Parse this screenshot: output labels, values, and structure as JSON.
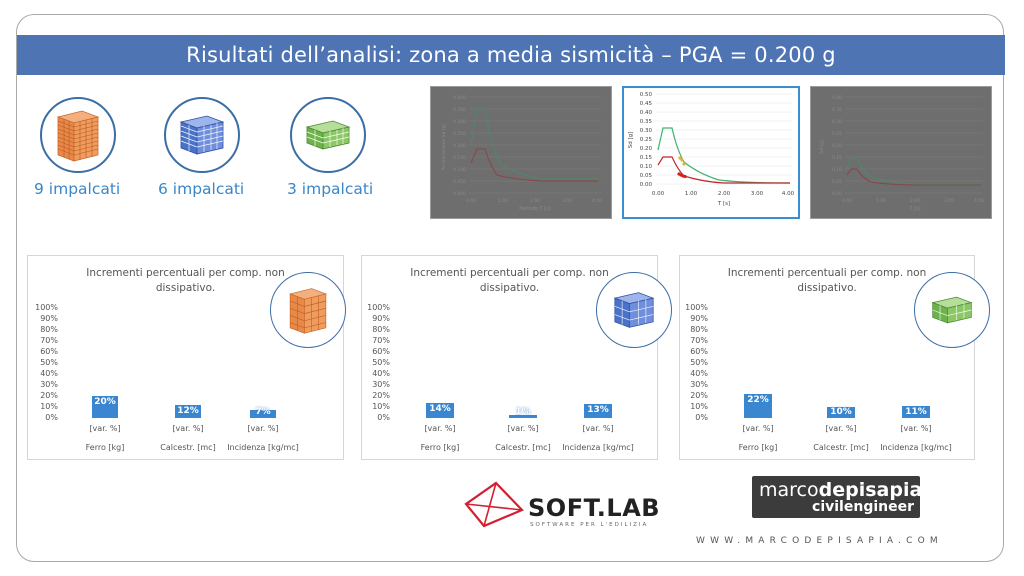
{
  "title": "Risultati dell’analisi: zona a media sismicità – PGA = 0.200 g",
  "buildings": [
    {
      "label": "9 impalcati",
      "color": "#e8894a",
      "icon": "building-9-floors-icon"
    },
    {
      "label": "6 impalcati",
      "color": "#4a72c8",
      "icon": "building-6-floors-icon"
    },
    {
      "label": "3 impalcati",
      "color": "#6fb24c",
      "icon": "building-3-floors-icon"
    }
  ],
  "spectra": {
    "left": {
      "yticks": [
        "0.400",
        "0.350",
        "0.300",
        "0.250",
        "0.200",
        "0.150",
        "0.100",
        "0.050",
        "0.000"
      ],
      "xticks": [
        "0.00",
        "1.00",
        "2.00",
        "3.00",
        "4.00"
      ],
      "ylabel": "Accelerazione Sd [g]",
      "xlabel": "Periodo T [s]"
    },
    "middle": {
      "yticks": [
        "0.50",
        "0.45",
        "0.40",
        "0.35",
        "0.30",
        "0.25",
        "0.20",
        "0.15",
        "0.10",
        "0.05",
        "0.00"
      ],
      "xticks": [
        "0.00",
        "1.00",
        "2.00",
        "3.00",
        "4.00"
      ],
      "ylabel": "Sd [g]",
      "xlabel": "T [s]"
    },
    "right": {
      "yticks": [
        "0.40",
        "0.35",
        "0.30",
        "0.25",
        "0.20",
        "0.15",
        "0.10",
        "0.05",
        "0.00"
      ],
      "xticks": [
        "0.00",
        "1.00",
        "2.00",
        "3.00",
        "4.00"
      ],
      "ylabel": "Sd [g]",
      "xlabel": "T [s]"
    }
  },
  "panels": [
    {
      "title_line1": "Incrementi percentuali per comp. non",
      "title_line2": "dissipativo.",
      "yticks": [
        "100%",
        "90%",
        "80%",
        "70%",
        "60%",
        "50%",
        "40%",
        "30%",
        "20%",
        "10%",
        "0%"
      ],
      "bars": [
        {
          "label": "20%",
          "value": 20,
          "var": "[var. %]",
          "category": "Ferro [kg]"
        },
        {
          "label": "12%",
          "value": 12,
          "var": "[var. %]",
          "category": "Calcestr. [mc]"
        },
        {
          "label": "7%",
          "value": 7,
          "var": "[var. %]",
          "category": "Incidenza [kg/mc]"
        }
      ]
    },
    {
      "title_line1": "Incrementi percentuali per comp. non",
      "title_line2": "dissipativo.",
      "yticks": [
        "100%",
        "90%",
        "80%",
        "70%",
        "60%",
        "50%",
        "40%",
        "30%",
        "20%",
        "10%",
        "0%"
      ],
      "bars": [
        {
          "label": "14%",
          "value": 14,
          "var": "[var. %]",
          "category": "Ferro [kg]"
        },
        {
          "label": "1%",
          "value": 1,
          "var": "[var. %]",
          "category": "Calcestr. [mc]"
        },
        {
          "label": "13%",
          "value": 13,
          "var": "[var. %]",
          "category": "Incidenza [kg/mc]"
        }
      ]
    },
    {
      "title_line1": "Incrementi percentuali per comp. non",
      "title_line2": "dissipativo.",
      "yticks": [
        "100%",
        "90%",
        "80%",
        "70%",
        "60%",
        "50%",
        "40%",
        "30%",
        "20%",
        "10%",
        "0%"
      ],
      "bars": [
        {
          "label": "22%",
          "value": 22,
          "var": "[var. %]",
          "category": "Ferro [kg]"
        },
        {
          "label": "10%",
          "value": 10,
          "var": "[var. %]",
          "category": "Calcestr. [mc]"
        },
        {
          "label": "11%",
          "value": 11,
          "var": "[var. %]",
          "category": "Incidenza [kg/mc]"
        }
      ]
    }
  ],
  "chart_data": [
    {
      "type": "bar",
      "title": "Incrementi percentuali per comp. non dissipativo.",
      "categories": [
        "Ferro [kg]",
        "Calcestr. [mc]",
        "Incidenza [kg/mc]"
      ],
      "values": [
        20,
        12,
        7
      ],
      "ylim": [
        0,
        100
      ]
    },
    {
      "type": "bar",
      "title": "Incrementi percentuali per comp. non dissipativo.",
      "categories": [
        "Ferro [kg]",
        "Calcestr. [mc]",
        "Incidenza [kg/mc]"
      ],
      "values": [
        14,
        1,
        13
      ],
      "ylim": [
        0,
        100
      ]
    },
    {
      "type": "bar",
      "title": "Incrementi percentuali per comp. non dissipativo.",
      "categories": [
        "Ferro [kg]",
        "Calcestr. [mc]",
        "Incidenza [kg/mc]"
      ],
      "values": [
        22,
        10,
        11
      ],
      "ylim": [
        0,
        100
      ]
    }
  ],
  "logos": {
    "softlab_name": "SOFT.LAB",
    "softlab_tagline": "SOFTWARE PER L'EDILIZIA",
    "softlab_color": "#d32030",
    "mdp_part1": "marco",
    "mdp_part2": "depisapia",
    "mdp_part3": "civilengineer",
    "website": "WWW.MARCODEPISAPIA.COM"
  },
  "colors": {
    "title_bar": "#4f74b4",
    "bar": "#3a86d0",
    "green_curve": "#3cb371",
    "red_curve": "#c0282b"
  }
}
